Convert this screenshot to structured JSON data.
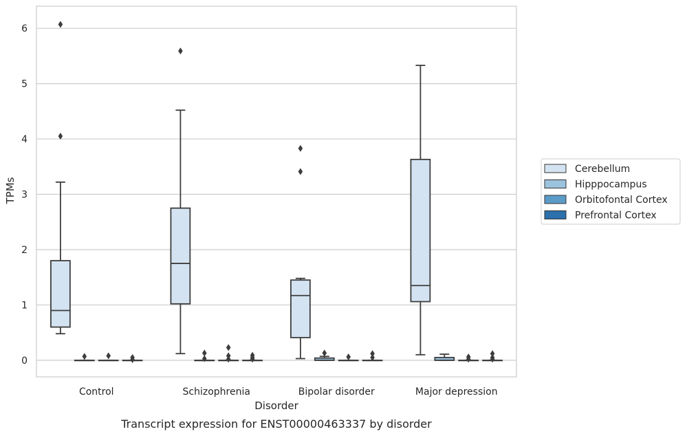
{
  "chart_data": {
    "type": "box",
    "xlabel": "Disorder",
    "ylabel": "TPMs",
    "caption": "Transcript expression for ENST00000463337 by disorder",
    "ylim": [
      -0.3,
      6.4
    ],
    "yticks": [
      0,
      1,
      2,
      3,
      4,
      5,
      6
    ],
    "grid": true,
    "legend_position": "right",
    "categories": [
      "Control",
      "Schizophrenia",
      "Bipolar disorder",
      "Major depression"
    ],
    "series": [
      {
        "name": "Cerebellum",
        "color": "#d4e3f1",
        "boxes": [
          {
            "whisker_low": 0.48,
            "q1": 0.6,
            "median": 0.9,
            "q3": 1.8,
            "whisker_high": 3.22,
            "outliers": [
              4.05,
              6.07
            ]
          },
          {
            "whisker_low": 0.12,
            "q1": 1.02,
            "median": 1.75,
            "q3": 2.75,
            "whisker_high": 4.52,
            "outliers": [
              5.59
            ]
          },
          {
            "whisker_low": 0.03,
            "q1": 0.41,
            "median": 1.17,
            "q3": 1.45,
            "whisker_high": 1.48,
            "outliers": [
              3.41,
              3.83
            ]
          },
          {
            "whisker_low": 0.1,
            "q1": 1.06,
            "median": 1.35,
            "q3": 3.63,
            "whisker_high": 5.33,
            "outliers": []
          }
        ]
      },
      {
        "name": "Hipppocampus",
        "color": "#9cc3de",
        "boxes": [
          {
            "whisker_low": 0,
            "q1": 0,
            "median": 0,
            "q3": 0,
            "whisker_high": 0,
            "outliers": [
              0.07
            ]
          },
          {
            "whisker_low": 0,
            "q1": 0,
            "median": 0,
            "q3": 0,
            "whisker_high": 0,
            "outliers": [
              0.03,
              0.13
            ]
          },
          {
            "whisker_low": 0,
            "q1": 0,
            "median": 0,
            "q3": 0.04,
            "whisker_high": 0.07,
            "outliers": [
              0.13
            ]
          },
          {
            "whisker_low": 0,
            "q1": 0,
            "median": 0,
            "q3": 0.05,
            "whisker_high": 0.11,
            "outliers": []
          }
        ]
      },
      {
        "name": "Orbitofontal Cortex",
        "color": "#5b9bc8",
        "boxes": [
          {
            "whisker_low": 0,
            "q1": 0,
            "median": 0,
            "q3": 0,
            "whisker_high": 0,
            "outliers": [
              0.08
            ]
          },
          {
            "whisker_low": 0,
            "q1": 0,
            "median": 0,
            "q3": 0,
            "whisker_high": 0,
            "outliers": [
              0.02,
              0.08,
              0.23
            ]
          },
          {
            "whisker_low": 0,
            "q1": 0,
            "median": 0,
            "q3": 0,
            "whisker_high": 0,
            "outliers": [
              0.06
            ]
          },
          {
            "whisker_low": 0,
            "q1": 0,
            "median": 0,
            "q3": 0,
            "whisker_high": 0,
            "outliers": [
              0.02,
              0.06
            ]
          }
        ]
      },
      {
        "name": "Prefrontal Cortex",
        "color": "#2c70ac",
        "boxes": [
          {
            "whisker_low": 0,
            "q1": 0,
            "median": 0,
            "q3": 0,
            "whisker_high": 0,
            "outliers": [
              0.01,
              0.05
            ]
          },
          {
            "whisker_low": 0,
            "q1": 0,
            "median": 0,
            "q3": 0,
            "whisker_high": 0,
            "outliers": [
              0.02,
              0.05,
              0.09
            ]
          },
          {
            "whisker_low": 0,
            "q1": 0,
            "median": 0,
            "q3": 0,
            "whisker_high": 0,
            "outliers": [
              0.05,
              0.12
            ]
          },
          {
            "whisker_low": 0,
            "q1": 0,
            "median": 0,
            "q3": 0,
            "whisker_high": 0,
            "outliers": [
              0.02,
              0.05,
              0.12
            ]
          }
        ]
      }
    ]
  }
}
